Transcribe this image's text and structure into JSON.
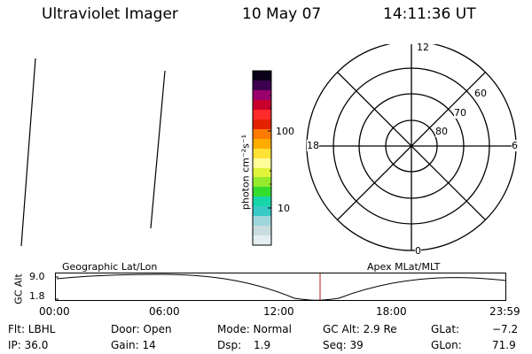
{
  "header": {
    "title": "Ultraviolet Imager",
    "date": "10 May 07",
    "time": "14:11:36 UT"
  },
  "colorbar": {
    "unit_label": "photon cm⁻²s⁻¹",
    "tick_100": "100",
    "tick_10": "10",
    "colors": [
      "#e4eef0",
      "#c9dde0",
      "#9fd6dc",
      "#38c9c6",
      "#16d5a8",
      "#33dd2e",
      "#95ea2e",
      "#e1f43c",
      "#ffff9a",
      "#ffe236",
      "#ffab00",
      "#ff7a00",
      "#e32200",
      "#ff2a2a",
      "#c8002c",
      "#9a006b",
      "#3c0050",
      "#0a0018"
    ]
  },
  "polar_plot": {
    "mlt_top": "12",
    "mlt_bottom": "0",
    "mlt_left": "18",
    "mlt_right": "6",
    "lat_60": "60",
    "lat_70": "70",
    "lat_80": "80"
  },
  "timeline": {
    "left_label": "Geographic Lat/Lon",
    "right_label": "Apex MLat/MLT",
    "axis_label": "GC Alt",
    "y_top": "9.0",
    "y_bottom": "1.8",
    "ticks": [
      "00:00",
      "06:00",
      "12:00",
      "18:00",
      "23:59"
    ]
  },
  "info": {
    "filter": "Flt: LBHL",
    "door": "Door: Open",
    "mode": "Mode: Normal",
    "gc_alt": "GC Alt: 2.9 Re",
    "glat_label": "GLat:",
    "glat_value": "−7.2",
    "ip": "IP: 36.0",
    "gain": "Gain: 14",
    "dsp_label": "Dsp:",
    "dsp_value": "1.9",
    "seq": "Seq: 39",
    "glon_label": "GLon:",
    "glon_value": "71.9"
  }
}
